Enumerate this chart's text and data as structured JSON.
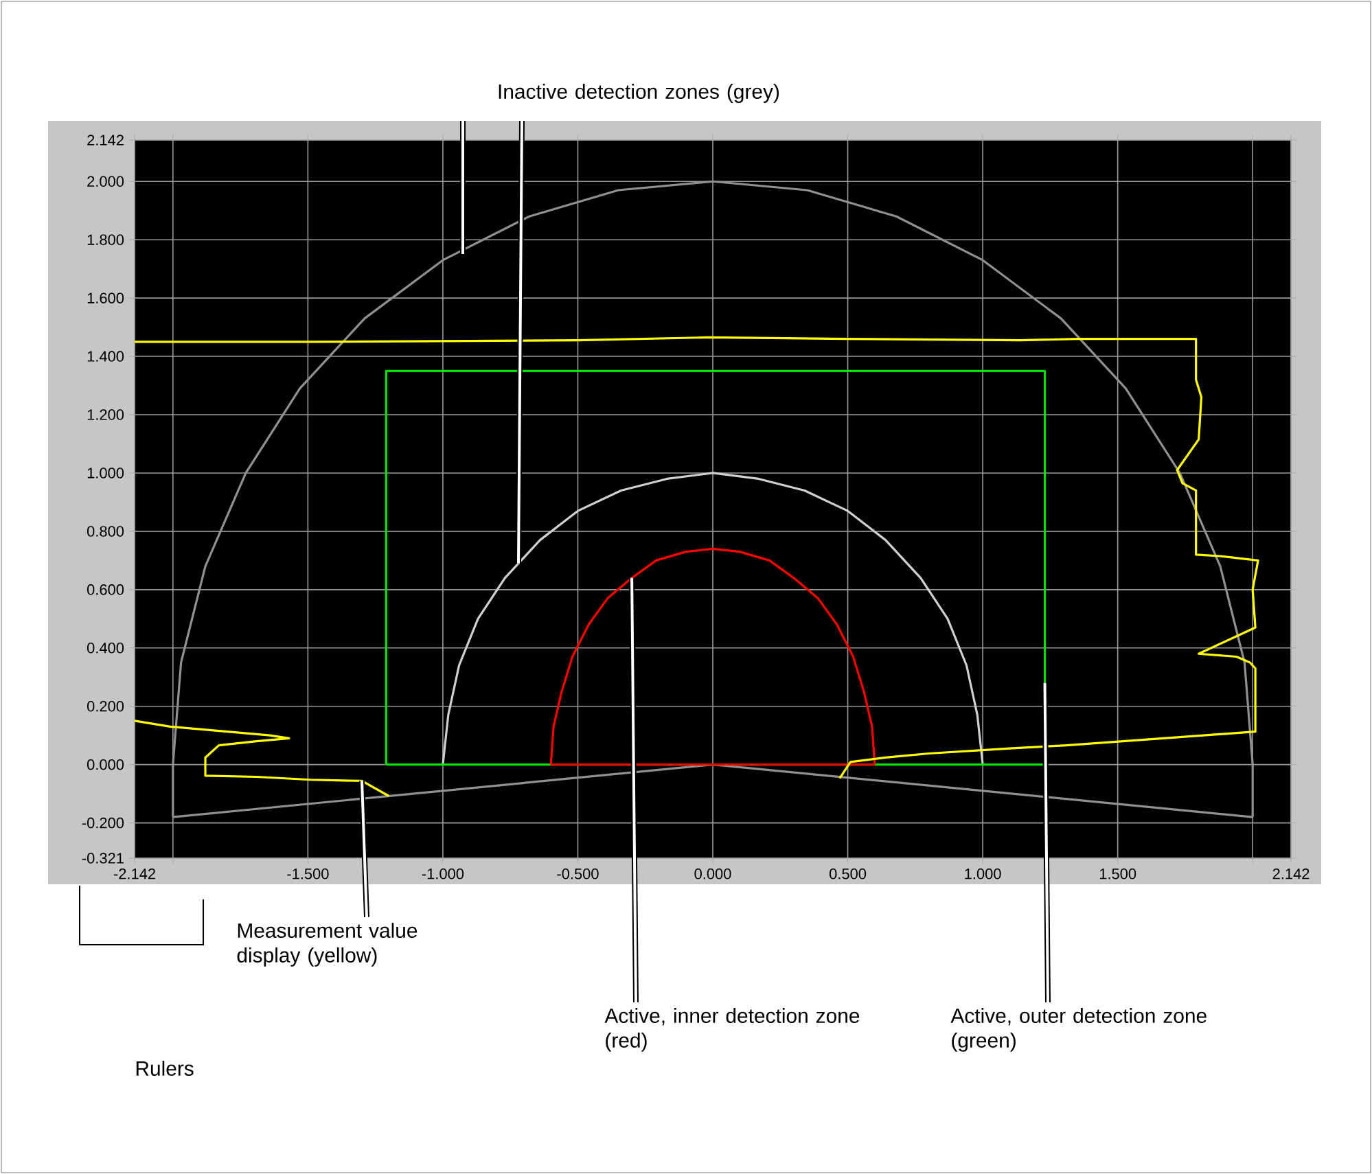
{
  "chart_data": {
    "type": "line",
    "annotations": [
      {
        "text": "Inactive detection zones (grey)",
        "x": -0.72,
        "y": 0.69
      },
      {
        "text": "Measurement value display (yellow)",
        "x": -1.3,
        "y": -0.056
      },
      "Rulers",
      {
        "text": "Active, inner detection zone (red)",
        "x": -0.3,
        "y": 0.64
      },
      {
        "text": "Active, outer detection zone (green)",
        "x": 1.23,
        "y": 0.28
      }
    ],
    "xlim": [
      -2.142,
      2.142
    ],
    "ylim": [
      -0.321,
      2.142
    ],
    "xticks": [
      {
        "value": -2.142,
        "label": "-2.142"
      },
      {
        "value": -2,
        "label": null
      },
      {
        "value": -1.5,
        "label": "-1.500"
      },
      {
        "value": -1,
        "label": "-1.000"
      },
      {
        "value": -0.5,
        "label": "-0.500"
      },
      {
        "value": 0,
        "label": "0.000"
      },
      {
        "value": 0.5,
        "label": "0.500"
      },
      {
        "value": 1,
        "label": "1.000"
      },
      {
        "value": 1.5,
        "label": "1.500"
      },
      {
        "value": 2,
        "label": null
      },
      {
        "value": 2.142,
        "label": "2.142"
      }
    ],
    "yticks": [
      {
        "value": -0.321,
        "label": "-0.321"
      },
      {
        "value": -0.2,
        "label": "-0.200"
      },
      {
        "value": 0,
        "label": "0.000"
      },
      {
        "value": 0.2,
        "label": "0.200"
      },
      {
        "value": 0.4,
        "label": "0.400"
      },
      {
        "value": 0.6,
        "label": "0.600"
      },
      {
        "value": 0.8,
        "label": "0.800"
      },
      {
        "value": 1,
        "label": "1.000"
      },
      {
        "value": 1.2,
        "label": "1.200"
      },
      {
        "value": 1.4,
        "label": "1.400"
      },
      {
        "value": 1.6,
        "label": "1.600"
      },
      {
        "value": 1.8,
        "label": "1.800"
      },
      {
        "value": 2,
        "label": "2.000"
      },
      {
        "value": 2.142,
        "label": "2.142"
      }
    ],
    "grid": true,
    "series": [
      {
        "color": "#909090",
        "x": [
          -2,
          -2,
          -1.97,
          -1.88,
          -1.73,
          -1.53,
          -1.29,
          -1,
          -0.68,
          -0.35,
          0,
          0.35,
          0.68,
          1,
          1.29,
          1.53,
          1.73,
          1.88,
          1.97,
          2,
          2
        ],
        "values": [
          -0.18,
          0,
          0.35,
          0.68,
          1,
          1.29,
          1.53,
          1.73,
          1.88,
          1.97,
          2,
          1.97,
          1.88,
          1.73,
          1.53,
          1.29,
          1,
          0.68,
          0.35,
          0,
          -0.18
        ]
      },
      {
        "color": "#909090",
        "x": [
          -2,
          0,
          2
        ],
        "values": [
          -0.18,
          0,
          -0.18
        ]
      },
      {
        "color": "#d0d0d0",
        "x": [
          -1,
          -0.98,
          -0.94,
          -0.87,
          -0.77,
          -0.64,
          -0.5,
          -0.34,
          -0.17,
          0,
          0.17,
          0.34,
          0.5,
          0.64,
          0.77,
          0.87,
          0.94,
          0.98,
          1
        ],
        "values": [
          0,
          0.17,
          0.34,
          0.5,
          0.64,
          0.77,
          0.87,
          0.94,
          0.98,
          1,
          0.98,
          0.94,
          0.87,
          0.77,
          0.64,
          0.5,
          0.34,
          0.17,
          0
        ]
      },
      {
        "color": "#00e000",
        "x": [
          -1.21,
          -1.21,
          1.23,
          1.23
        ],
        "values": [
          0,
          1.35,
          1.35,
          0
        ]
      },
      {
        "color": "#00e000",
        "x": [
          -1.21,
          1.23
        ],
        "values": [
          0,
          0
        ]
      },
      {
        "color": "#ff0000",
        "x": [
          -0.6,
          0.6
        ],
        "values": [
          0,
          0
        ]
      },
      {
        "color": "#ff0000",
        "x": [
          -0.6,
          -0.59,
          -0.56,
          -0.52,
          -0.46,
          -0.39,
          -0.3,
          -0.21,
          -0.1,
          0,
          0.1,
          0.21,
          0.3,
          0.39,
          0.46,
          0.52,
          0.56,
          0.59,
          0.6
        ],
        "values": [
          0,
          0.13,
          0.25,
          0.37,
          0.48,
          0.57,
          0.64,
          0.7,
          0.73,
          0.74,
          0.73,
          0.7,
          0.64,
          0.57,
          0.48,
          0.37,
          0.25,
          0.13,
          0
        ]
      },
      {
        "color": "#ffff00",
        "x": [
          -2.142,
          -2.01,
          -1.64,
          -1.57,
          -1.69,
          -1.83,
          -1.88,
          -1.88,
          -1.69,
          -1.49,
          -1.3,
          -1.2,
          null,
          0.47,
          0.51,
          0.64,
          0.8,
          1.11,
          1.31,
          2.01,
          2.01,
          1.99,
          1.94,
          1.8,
          2.01,
          2.0,
          2.02,
          1.88,
          1.79,
          1.79,
          1.74,
          1.72,
          1.8,
          1.81,
          1.79,
          1.79,
          1.35,
          1.14,
          0.5,
          -0.02,
          -0.5,
          -1.48,
          -2.142
        ],
        "values": [
          0.15,
          0.13,
          0.1,
          0.09,
          0.08,
          0.066,
          0.024,
          -0.038,
          -0.042,
          -0.052,
          -0.056,
          -0.108,
          null,
          -0.047,
          0.009,
          0.024,
          0.038,
          0.056,
          0.066,
          0.113,
          0.33,
          0.35,
          0.37,
          0.38,
          0.47,
          0.6,
          0.7,
          0.715,
          0.72,
          0.94,
          0.965,
          1.01,
          1.115,
          1.26,
          1.32,
          1.46,
          1.46,
          1.455,
          1.46,
          1.465,
          1.455,
          1.45,
          1.45
        ]
      }
    ]
  }
}
